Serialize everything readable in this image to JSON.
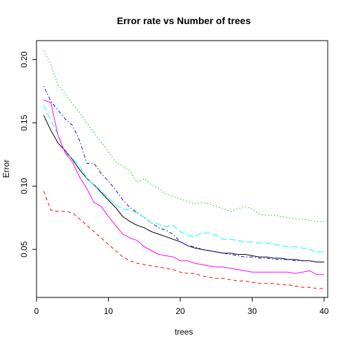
{
  "chart_data": {
    "type": "line",
    "title": "Error rate vs Number of trees",
    "xlabel": "trees",
    "ylabel": "Error",
    "xlim": [
      0,
      40.5
    ],
    "ylim": [
      0.012,
      0.215
    ],
    "x_ticks": [
      0,
      10,
      20,
      30,
      40
    ],
    "x_tick_labels": [
      "0",
      "10",
      "20",
      "30",
      "40"
    ],
    "y_ticks": [
      0.05,
      0.1,
      0.15,
      0.2
    ],
    "y_tick_labels": [
      "0.05",
      "0.10",
      "0.15",
      "0.20"
    ],
    "grid": false,
    "legend": "none",
    "x": [
      1,
      2,
      3,
      4,
      5,
      6,
      7,
      8,
      9,
      10,
      11,
      12,
      13,
      14,
      15,
      16,
      17,
      18,
      19,
      20,
      21,
      22,
      23,
      24,
      25,
      26,
      27,
      28,
      29,
      30,
      31,
      32,
      33,
      34,
      35,
      36,
      37,
      38,
      39,
      40
    ],
    "series": [
      {
        "color": "#000000",
        "dash": "solid",
        "values": [
          0.156,
          0.144,
          0.134,
          0.128,
          0.121,
          0.113,
          0.106,
          0.101,
          0.095,
          0.089,
          0.083,
          0.076,
          0.072,
          0.069,
          0.067,
          0.064,
          0.062,
          0.06,
          0.058,
          0.056,
          0.053,
          0.051,
          0.05,
          0.049,
          0.048,
          0.047,
          0.047,
          0.046,
          0.046,
          0.045,
          0.044,
          0.044,
          0.043,
          0.043,
          0.042,
          0.042,
          0.041,
          0.041,
          0.04,
          0.04
        ]
      },
      {
        "color": "#ff0000",
        "dash": "dashed",
        "values": [
          0.096,
          0.081,
          0.08,
          0.08,
          0.079,
          0.074,
          0.069,
          0.064,
          0.059,
          0.054,
          0.049,
          0.044,
          0.041,
          0.039,
          0.038,
          0.037,
          0.036,
          0.035,
          0.034,
          0.032,
          0.031,
          0.031,
          0.029,
          0.028,
          0.027,
          0.027,
          0.026,
          0.025,
          0.025,
          0.024,
          0.023,
          0.023,
          0.023,
          0.022,
          0.022,
          0.021,
          0.02,
          0.02,
          0.019,
          0.019
        ]
      },
      {
        "color": "#00cc00",
        "dash": "dotted",
        "values": [
          0.207,
          0.196,
          0.18,
          0.173,
          0.165,
          0.158,
          0.15,
          0.142,
          0.135,
          0.127,
          0.119,
          0.116,
          0.112,
          0.103,
          0.106,
          0.101,
          0.098,
          0.094,
          0.092,
          0.09,
          0.088,
          0.086,
          0.087,
          0.086,
          0.084,
          0.082,
          0.08,
          0.082,
          0.084,
          0.082,
          0.078,
          0.077,
          0.077,
          0.076,
          0.075,
          0.074,
          0.074,
          0.073,
          0.072,
          0.072
        ]
      },
      {
        "color": "#0000ff",
        "dash": "dashdot",
        "values": [
          0.179,
          0.167,
          0.16,
          0.153,
          0.148,
          0.136,
          0.118,
          0.118,
          0.11,
          0.104,
          0.097,
          0.089,
          0.083,
          0.079,
          0.075,
          0.071,
          0.067,
          0.065,
          0.062,
          0.056,
          0.053,
          0.052,
          0.05,
          0.049,
          0.048,
          0.047,
          0.046,
          0.045,
          0.044,
          0.044,
          0.043,
          0.043,
          0.042,
          0.042,
          0.042,
          0.041,
          0.041,
          0.041,
          0.04,
          0.04
        ]
      },
      {
        "color": "#00ffff",
        "dash": "longdash",
        "values": [
          0.164,
          0.152,
          0.141,
          0.126,
          0.122,
          0.116,
          0.106,
          0.101,
          0.096,
          0.091,
          0.085,
          0.082,
          0.081,
          0.079,
          0.075,
          0.071,
          0.07,
          0.068,
          0.069,
          0.064,
          0.061,
          0.06,
          0.063,
          0.063,
          0.061,
          0.058,
          0.058,
          0.057,
          0.056,
          0.056,
          0.055,
          0.055,
          0.054,
          0.053,
          0.052,
          0.052,
          0.051,
          0.05,
          0.048,
          0.048
        ]
      },
      {
        "color": "#ff00ff",
        "dash": "solid",
        "values": [
          0.168,
          0.166,
          0.14,
          0.126,
          0.119,
          0.107,
          0.098,
          0.087,
          0.084,
          0.076,
          0.069,
          0.062,
          0.059,
          0.057,
          0.052,
          0.049,
          0.046,
          0.045,
          0.044,
          0.041,
          0.041,
          0.039,
          0.038,
          0.037,
          0.036,
          0.036,
          0.035,
          0.034,
          0.033,
          0.032,
          0.032,
          0.032,
          0.032,
          0.032,
          0.032,
          0.031,
          0.032,
          0.033,
          0.03,
          0.03
        ]
      }
    ]
  }
}
